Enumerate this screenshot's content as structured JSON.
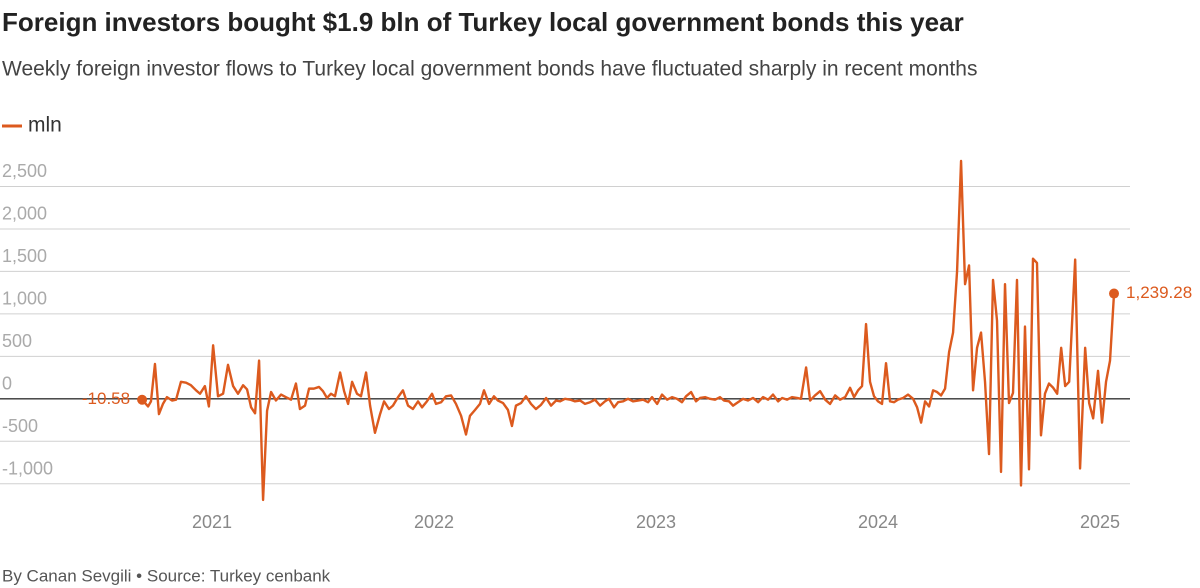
{
  "chart_data": {
    "type": "line",
    "title": "Foreign investors bought $1.9 bln of Turkey local government bonds this year",
    "subtitle": "Weekly foreign investor flows to Turkey local government bonds have fluctuated sharply in recent months",
    "caption": "By Canan Sevgili • Source: Turkey cenbank",
    "end_label": "1,239.28",
    "legend": "top-left",
    "grid": true,
    "xlim": [
      2020.045,
      2025.135
    ],
    "xticks": [
      2021,
      2022,
      2023,
      2024,
      2025
    ],
    "ylim": [
      -1250,
      2900
    ],
    "yticks": [
      {
        "value": -1000,
        "label": "-1,000"
      },
      -500,
      0,
      500,
      {
        "value": 1000,
        "label": "1,000"
      },
      {
        "value": 1500,
        "label": "1,500"
      },
      {
        "value": 2000,
        "label": "2,000"
      },
      {
        "value": 2500,
        "label": "2,500"
      }
    ],
    "x": [
      2020.685,
      2020.712,
      2020.725,
      2020.743,
      2020.761,
      2020.779,
      2020.797,
      2020.82,
      2020.838,
      2020.86,
      2020.883,
      2020.905,
      2020.928,
      2020.946,
      2020.968,
      2020.986,
      2021.005,
      2021.027,
      2021.05,
      2021.072,
      2021.095,
      2021.117,
      2021.14,
      2021.158,
      2021.176,
      2021.194,
      2021.212,
      2021.23,
      2021.248,
      2021.266,
      2021.288,
      2021.311,
      2021.333,
      2021.356,
      2021.378,
      2021.396,
      2021.419,
      2021.437,
      2021.459,
      2021.482,
      2021.5,
      2021.518,
      2021.536,
      2021.554,
      2021.577,
      2021.595,
      2021.613,
      2021.631,
      2021.653,
      2021.671,
      2021.694,
      2021.712,
      2021.734,
      2021.757,
      2021.775,
      2021.797,
      2021.815,
      2021.838,
      2021.86,
      2021.883,
      2021.905,
      2021.928,
      2021.946,
      2021.968,
      2021.991,
      2022.009,
      2022.032,
      2022.054,
      2022.077,
      2022.099,
      2022.122,
      2022.144,
      2022.162,
      2022.185,
      2022.207,
      2022.225,
      2022.248,
      2022.27,
      2022.288,
      2022.311,
      2022.333,
      2022.351,
      2022.369,
      2022.392,
      2022.414,
      2022.437,
      2022.459,
      2022.482,
      2022.505,
      2022.527,
      2022.55,
      2022.568,
      2022.59,
      2022.613,
      2022.635,
      2022.658,
      2022.68,
      2022.703,
      2022.725,
      2022.748,
      2022.77,
      2022.788,
      2022.811,
      2022.829,
      2022.852,
      2022.874,
      2022.897,
      2022.919,
      2022.942,
      2022.964,
      2022.982,
      2023.005,
      2023.027,
      2023.05,
      2023.072,
      2023.095,
      2023.117,
      2023.135,
      2023.158,
      2023.18,
      2023.198,
      2023.221,
      2023.243,
      2023.266,
      2023.288,
      2023.306,
      2023.329,
      2023.347,
      2023.369,
      2023.392,
      2023.414,
      2023.437,
      2023.46,
      2023.482,
      2023.505,
      2023.527,
      2023.55,
      2023.568,
      2023.59,
      2023.613,
      2023.635,
      2023.653,
      2023.676,
      2023.694,
      2023.716,
      2023.739,
      2023.762,
      2023.784,
      2023.807,
      2023.829,
      2023.852,
      2023.874,
      2023.892,
      2023.91,
      2023.928,
      2023.946,
      2023.964,
      2023.982,
      2024.0,
      2024.018,
      2024.036,
      2024.054,
      2024.072,
      2024.09,
      2024.113,
      2024.135,
      2024.158,
      2024.176,
      2024.194,
      2024.212,
      2024.23,
      2024.248,
      2024.266,
      2024.284,
      2024.302,
      2024.32,
      2024.338,
      2024.356,
      2024.374,
      2024.392,
      2024.41,
      2024.428,
      2024.446,
      2024.464,
      2024.482,
      2024.5,
      2024.518,
      2024.536,
      2024.554,
      2024.572,
      2024.59,
      2024.608,
      2024.626,
      2024.644,
      2024.662,
      2024.68,
      2024.698,
      2024.716,
      2024.734,
      2024.752,
      2024.77,
      2024.789,
      2024.807,
      2024.825,
      2024.843,
      2024.861,
      2024.888,
      2024.91,
      2024.933,
      2024.951,
      2024.969,
      2024.991,
      2025.009,
      2025.027,
      2025.045,
      2025.063
    ],
    "series": [
      {
        "name": "mln",
        "color": "#dc5a1e",
        "values": [
          -10.58,
          -90,
          -30,
          410,
          -180,
          -60,
          20,
          -20,
          -10,
          200,
          190,
          160,
          100,
          60,
          150,
          -90,
          630,
          30,
          60,
          400,
          150,
          60,
          160,
          110,
          -100,
          -170,
          450,
          -1190,
          -140,
          80,
          -20,
          50,
          20,
          -10,
          180,
          -120,
          -80,
          120,
          120,
          140,
          90,
          10,
          60,
          30,
          310,
          90,
          -60,
          200,
          60,
          30,
          310,
          -80,
          -400,
          -180,
          -30,
          -120,
          -80,
          20,
          100,
          -80,
          -120,
          -30,
          -100,
          -30,
          60,
          -60,
          -40,
          30,
          40,
          -60,
          -200,
          -420,
          -200,
          -130,
          -60,
          100,
          -60,
          30,
          -20,
          -50,
          -130,
          -320,
          -80,
          -50,
          30,
          -60,
          -120,
          -70,
          10,
          -80,
          -20,
          -30,
          0,
          -10,
          -30,
          -20,
          -60,
          -40,
          -10,
          -80,
          -30,
          0,
          -100,
          -40,
          -30,
          0,
          -30,
          -20,
          -10,
          -40,
          20,
          -60,
          50,
          -10,
          20,
          0,
          -40,
          30,
          80,
          -30,
          10,
          20,
          0,
          -10,
          20,
          -20,
          -30,
          -80,
          -40,
          0,
          -20,
          10,
          -40,
          20,
          -10,
          50,
          -30,
          10,
          -10,
          20,
          10,
          0,
          370,
          -20,
          40,
          90,
          -10,
          -60,
          40,
          -10,
          20,
          130,
          20,
          100,
          150,
          880,
          200,
          30,
          -30,
          -60,
          420,
          -30,
          -40,
          -10,
          10,
          50,
          0,
          -100,
          -280,
          -30,
          -90,
          100,
          80,
          40,
          120,
          550,
          780,
          1500,
          2800,
          1350,
          1570,
          100,
          600,
          780,
          200,
          -650,
          1400,
          920,
          -860,
          1350,
          -50,
          70,
          1400,
          -1020,
          850,
          -830,
          1650,
          1600,
          -430,
          60,
          180,
          130,
          60,
          600,
          150,
          200,
          1640,
          -820,
          600,
          -50,
          -230,
          330,
          -280,
          200,
          450,
          1239.28
        ]
      }
    ]
  }
}
